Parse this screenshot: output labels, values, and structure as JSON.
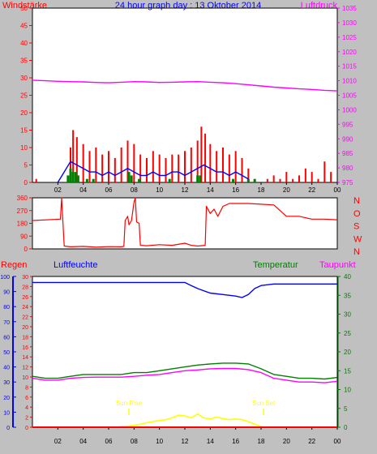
{
  "colors": {
    "background": "#c0c0c0",
    "plot_bg": "#ffffff",
    "red": "#ff0000",
    "blue": "#0000ff",
    "green": "#008000",
    "magenta": "#ff00ff",
    "yellow": "#ffff00",
    "darkgreen": "#006400",
    "plot_border": "#000000",
    "tick_text": "#000000"
  },
  "chart_data": [
    {
      "id": "wind",
      "type": "line",
      "title": "24 hour graph day : 13 Oktober 2014",
      "left_label": "Windstärke",
      "right_label": "Luftdruck",
      "x_ticks": [
        "02",
        "04",
        "06",
        "08",
        "10",
        "12",
        "14",
        "16",
        "18",
        "20",
        "22",
        "00"
      ],
      "y_left_ticks": [
        "0",
        "5",
        "10",
        "15",
        "20",
        "25",
        "30",
        "35",
        "40",
        "45",
        "50"
      ],
      "y_right_ticks": [
        "975",
        "980",
        "985",
        "990",
        "995",
        "1000",
        "1005",
        "1010",
        "1015",
        "1020",
        "1025",
        "1030",
        "1035"
      ],
      "ylim_left": [
        0,
        50
      ],
      "ylim_right": [
        975,
        1035
      ],
      "xlim": [
        0,
        24
      ],
      "series": [
        {
          "role": "gust",
          "color": "red",
          "type": "bars",
          "x": [
            0.3,
            3.0,
            3.2,
            3.5,
            4.0,
            4.5,
            5.0,
            5.5,
            6.0,
            6.5,
            7.0,
            7.5,
            8.0,
            8.5,
            9.0,
            9.5,
            10.0,
            10.5,
            11.0,
            11.5,
            12.0,
            12.5,
            13.0,
            13.3,
            13.6,
            14.0,
            14.5,
            15.0,
            15.5,
            16.0,
            16.5,
            17.0,
            18.5,
            19.0,
            19.5,
            20.0,
            20.5,
            21.0,
            21.5,
            22.0,
            22.5,
            23.0,
            23.5
          ],
          "y": [
            1,
            10,
            15,
            13,
            11,
            9,
            10,
            8,
            9,
            7,
            10,
            12,
            11,
            8,
            7,
            9,
            8,
            7,
            8,
            8,
            9,
            10,
            12,
            16,
            14,
            11,
            9,
            10,
            8,
            9,
            7,
            4,
            1,
            2,
            1,
            3,
            1,
            2,
            4,
            3,
            1,
            6,
            3
          ]
        },
        {
          "role": "mean_wind",
          "color": "blue",
          "type": "line",
          "x": [
            2.0,
            2.5,
            3.0,
            3.5,
            4.0,
            4.5,
            5.0,
            5.5,
            6.0,
            6.5,
            7.0,
            7.5,
            8.0,
            8.5,
            9.0,
            9.5,
            10.0,
            10.5,
            11.0,
            11.5,
            12.0,
            12.5,
            13.0,
            13.5,
            14.0,
            14.5,
            15.0,
            15.5,
            16.0,
            16.5,
            17.0
          ],
          "y": [
            0,
            3,
            6,
            5,
            4,
            3,
            3,
            2,
            3,
            2,
            3,
            4,
            3,
            2,
            2,
            3,
            2,
            2,
            3,
            3,
            2,
            3,
            4,
            5,
            4,
            3,
            3,
            2,
            3,
            2,
            1
          ]
        },
        {
          "role": "calm_bars",
          "color": "green",
          "type": "bars",
          "x": [
            2.8,
            3.0,
            3.2,
            3.4,
            3.6,
            4.3,
            4.8,
            7.6,
            7.8,
            8.4,
            10.8,
            13.0,
            13.2,
            15.8,
            17.0,
            17.5
          ],
          "y": [
            2,
            4,
            3,
            3,
            2,
            1,
            1,
            3,
            2,
            1,
            1,
            2,
            2,
            1,
            1,
            1
          ]
        },
        {
          "role": "pressure",
          "color": "magenta",
          "type": "line",
          "axis": "right",
          "x": [
            0,
            1,
            2,
            3,
            4,
            5,
            6,
            7,
            8,
            9,
            10,
            11,
            12,
            13,
            14,
            15,
            16,
            17,
            18,
            19,
            20,
            21,
            22,
            23,
            24
          ],
          "y": [
            1010.2,
            1010.0,
            1009.8,
            1009.7,
            1009.6,
            1009.4,
            1009.3,
            1009.5,
            1009.7,
            1009.6,
            1009.4,
            1009.5,
            1009.6,
            1009.7,
            1009.5,
            1009.3,
            1009.0,
            1008.6,
            1008.2,
            1007.8,
            1007.5,
            1007.2,
            1007.0,
            1006.7,
            1006.5
          ]
        }
      ]
    },
    {
      "id": "direction",
      "type": "line",
      "y_left_ticks": [
        "0",
        "90",
        "180",
        "270",
        "360"
      ],
      "y_right_ticks": [
        "N",
        "W",
        "S",
        "O",
        "N"
      ],
      "ylim": [
        0,
        360
      ],
      "xlim": [
        0,
        24
      ],
      "series": [
        {
          "role": "wind_direction",
          "color": "red",
          "x": [
            0,
            2.2,
            2.3,
            2.5,
            3,
            4,
            5,
            6,
            7,
            7.2,
            7.3,
            7.5,
            7.6,
            7.8,
            8.0,
            8.1,
            8.2,
            8.4,
            8.5,
            9,
            10,
            11,
            12,
            12.5,
            13,
            13.6,
            13.7,
            14,
            14.3,
            14.6,
            15,
            15.5,
            16,
            17,
            18,
            19,
            20,
            21,
            22,
            23,
            24
          ],
          "y": [
            200,
            210,
            360,
            20,
            15,
            18,
            12,
            16,
            15,
            18,
            200,
            230,
            170,
            200,
            330,
            360,
            190,
            180,
            25,
            22,
            30,
            25,
            40,
            25,
            20,
            25,
            300,
            250,
            280,
            230,
            300,
            320,
            320,
            320,
            315,
            310,
            230,
            230,
            210,
            210,
            205
          ]
        }
      ]
    },
    {
      "id": "temp",
      "type": "line",
      "left_labels": [
        "Regen",
        "Luftfeuchte"
      ],
      "right_labels": [
        "Temperatur",
        "Taupunkt"
      ],
      "x_ticks": [
        "02",
        "04",
        "06",
        "08",
        "10",
        "12",
        "14",
        "16",
        "18",
        "20",
        "22",
        "00"
      ],
      "y_left_ticks": [
        "0",
        "10",
        "20",
        "30",
        "40",
        "50",
        "60",
        "70",
        "80",
        "90",
        "100"
      ],
      "y_inner_ticks": [
        "0",
        "2",
        "4",
        "6",
        "8",
        "10",
        "12",
        "14",
        "16",
        "18",
        "20",
        "22",
        "24",
        "26",
        "28",
        "30"
      ],
      "y_right_ticks": [
        "0",
        "5",
        "10",
        "15",
        "20",
        "25",
        "30",
        "35",
        "40"
      ],
      "ylim_humidity": [
        0,
        100
      ],
      "ylim_temp": [
        0,
        40
      ],
      "xlim": [
        0,
        24
      ],
      "annotations": {
        "sun_rise": "Sun Rise",
        "sun_set": "Sun Set"
      },
      "sun_rise_x": 7.6,
      "sun_set_x": 18.2,
      "series": [
        {
          "role": "humidity",
          "color": "blue",
          "axis": "humidity",
          "x": [
            0,
            1,
            2,
            3,
            4,
            5,
            6,
            7,
            8,
            9,
            10,
            11,
            12,
            12.5,
            13,
            14,
            15,
            16,
            16.5,
            17,
            17.5,
            18,
            19,
            20,
            21,
            22,
            23,
            24
          ],
          "y": [
            96,
            96,
            96,
            96,
            96,
            96,
            96,
            96,
            96,
            96,
            96,
            96,
            96,
            94,
            92,
            89,
            88,
            87,
            86,
            88,
            92,
            94,
            95,
            95,
            95,
            95,
            95,
            95
          ]
        },
        {
          "role": "temperature",
          "color": "green",
          "axis": "temp",
          "x": [
            0,
            1,
            2,
            3,
            4,
            5,
            6,
            7,
            8,
            9,
            10,
            11,
            12,
            13,
            14,
            15,
            16,
            17,
            18,
            19,
            20,
            21,
            22,
            23,
            24
          ],
          "y": [
            13.5,
            13,
            13,
            13.5,
            14,
            14,
            14,
            14,
            14.5,
            14.5,
            15,
            15.5,
            16,
            16.5,
            16.8,
            17,
            17,
            16.8,
            15.5,
            14,
            13.5,
            13,
            13,
            12.8,
            13.2
          ]
        },
        {
          "role": "dewpoint",
          "color": "magenta",
          "axis": "temp",
          "x": [
            0,
            1,
            2,
            3,
            4,
            5,
            6,
            7,
            8,
            9,
            10,
            11,
            12,
            13,
            14,
            15,
            16,
            17,
            18,
            19,
            20,
            21,
            22,
            23,
            24
          ],
          "y": [
            13,
            12.5,
            12.5,
            13,
            13.2,
            13.3,
            13.3,
            13.3,
            13.5,
            13.8,
            14,
            14.5,
            15,
            15.2,
            15.5,
            15.6,
            15.6,
            15.3,
            14.5,
            13,
            12.5,
            12,
            12,
            11.8,
            12.2
          ]
        },
        {
          "role": "solar",
          "color": "yellow",
          "axis": "temp",
          "x": [
            6.6,
            7,
            7.5,
            8,
            8.5,
            9,
            9.5,
            10,
            10.5,
            11,
            11.5,
            12,
            12.5,
            13,
            13.5,
            14,
            14.5,
            15,
            15.5,
            16,
            16.5,
            17,
            17.5,
            18,
            18.3
          ],
          "y": [
            0,
            0.2,
            0.3,
            0.5,
            0.8,
            1.2,
            1.5,
            1.8,
            2.0,
            2.5,
            3.2,
            3.0,
            2.5,
            3.5,
            2.5,
            2.2,
            2.7,
            2.3,
            2.0,
            2.2,
            2.0,
            1.5,
            0.8,
            0.2,
            0
          ]
        },
        {
          "role": "rain",
          "color": "red",
          "axis": "humidity",
          "x": [
            0,
            24
          ],
          "y": [
            0,
            0
          ]
        }
      ]
    }
  ]
}
